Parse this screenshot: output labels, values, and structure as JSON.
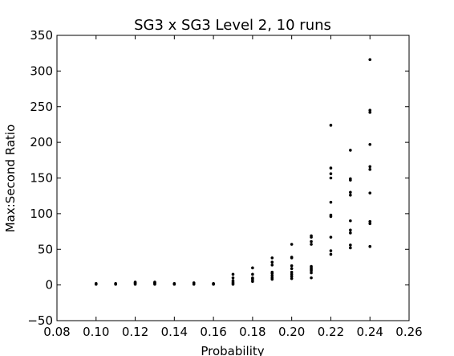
{
  "chart_data": {
    "type": "scatter",
    "title": "SG3 x SG3 Level 2, 10 runs",
    "xlabel": "Probability",
    "ylabel": "Max:Second Ratio",
    "xlim": [
      0.08,
      0.26
    ],
    "ylim": [
      -50,
      350
    ],
    "xticks": [
      0.08,
      0.1,
      0.12,
      0.14,
      0.16,
      0.18,
      0.2,
      0.22,
      0.24,
      0.26
    ],
    "xtick_labels": [
      "0.08",
      "0.10",
      "0.12",
      "0.14",
      "0.16",
      "0.18",
      "0.20",
      "0.22",
      "0.24",
      "0.26"
    ],
    "yticks": [
      -50,
      0,
      50,
      100,
      150,
      200,
      250,
      300,
      350
    ],
    "ytick_labels": [
      "−50",
      "0",
      "50",
      "100",
      "150",
      "200",
      "250",
      "300",
      "350"
    ],
    "grid": false,
    "marker_color": "#000000",
    "points": [
      [
        0.1,
        1
      ],
      [
        0.1,
        1.5
      ],
      [
        0.1,
        2
      ],
      [
        0.11,
        1
      ],
      [
        0.11,
        1.5
      ],
      [
        0.11,
        2
      ],
      [
        0.12,
        1
      ],
      [
        0.12,
        2
      ],
      [
        0.12,
        3
      ],
      [
        0.12,
        4
      ],
      [
        0.13,
        1
      ],
      [
        0.13,
        2
      ],
      [
        0.13,
        3
      ],
      [
        0.13,
        4
      ],
      [
        0.14,
        1
      ],
      [
        0.14,
        1.5
      ],
      [
        0.14,
        2
      ],
      [
        0.15,
        1
      ],
      [
        0.15,
        2
      ],
      [
        0.15,
        3
      ],
      [
        0.16,
        1
      ],
      [
        0.16,
        1.5
      ],
      [
        0.16,
        2
      ],
      [
        0.17,
        1
      ],
      [
        0.17,
        2
      ],
      [
        0.17,
        4
      ],
      [
        0.17,
        6
      ],
      [
        0.17,
        10
      ],
      [
        0.17,
        15
      ],
      [
        0.18,
        5
      ],
      [
        0.18,
        7
      ],
      [
        0.18,
        9
      ],
      [
        0.18,
        10
      ],
      [
        0.18,
        15
      ],
      [
        0.18,
        24
      ],
      [
        0.19,
        8
      ],
      [
        0.19,
        10
      ],
      [
        0.19,
        13
      ],
      [
        0.19,
        16
      ],
      [
        0.19,
        18
      ],
      [
        0.19,
        28
      ],
      [
        0.19,
        32
      ],
      [
        0.19,
        38
      ],
      [
        0.2,
        9
      ],
      [
        0.2,
        12
      ],
      [
        0.2,
        15
      ],
      [
        0.2,
        18
      ],
      [
        0.2,
        23
      ],
      [
        0.2,
        27
      ],
      [
        0.2,
        38
      ],
      [
        0.2,
        39
      ],
      [
        0.2,
        57
      ],
      [
        0.21,
        10
      ],
      [
        0.21,
        17
      ],
      [
        0.21,
        20
      ],
      [
        0.21,
        22
      ],
      [
        0.21,
        24
      ],
      [
        0.21,
        26
      ],
      [
        0.21,
        57
      ],
      [
        0.21,
        61
      ],
      [
        0.21,
        67
      ],
      [
        0.21,
        69
      ],
      [
        0.22,
        43
      ],
      [
        0.22,
        48
      ],
      [
        0.22,
        67
      ],
      [
        0.22,
        96
      ],
      [
        0.22,
        98
      ],
      [
        0.22,
        116
      ],
      [
        0.22,
        150
      ],
      [
        0.22,
        156
      ],
      [
        0.22,
        164
      ],
      [
        0.22,
        224
      ],
      [
        0.23,
        52
      ],
      [
        0.23,
        56
      ],
      [
        0.23,
        73
      ],
      [
        0.23,
        77
      ],
      [
        0.23,
        90
      ],
      [
        0.23,
        126
      ],
      [
        0.23,
        130
      ],
      [
        0.23,
        147
      ],
      [
        0.23,
        149
      ],
      [
        0.23,
        189
      ],
      [
        0.24,
        54
      ],
      [
        0.24,
        86
      ],
      [
        0.24,
        89
      ],
      [
        0.24,
        129
      ],
      [
        0.24,
        162
      ],
      [
        0.24,
        166
      ],
      [
        0.24,
        197
      ],
      [
        0.24,
        242
      ],
      [
        0.24,
        245
      ],
      [
        0.24,
        316
      ]
    ]
  }
}
